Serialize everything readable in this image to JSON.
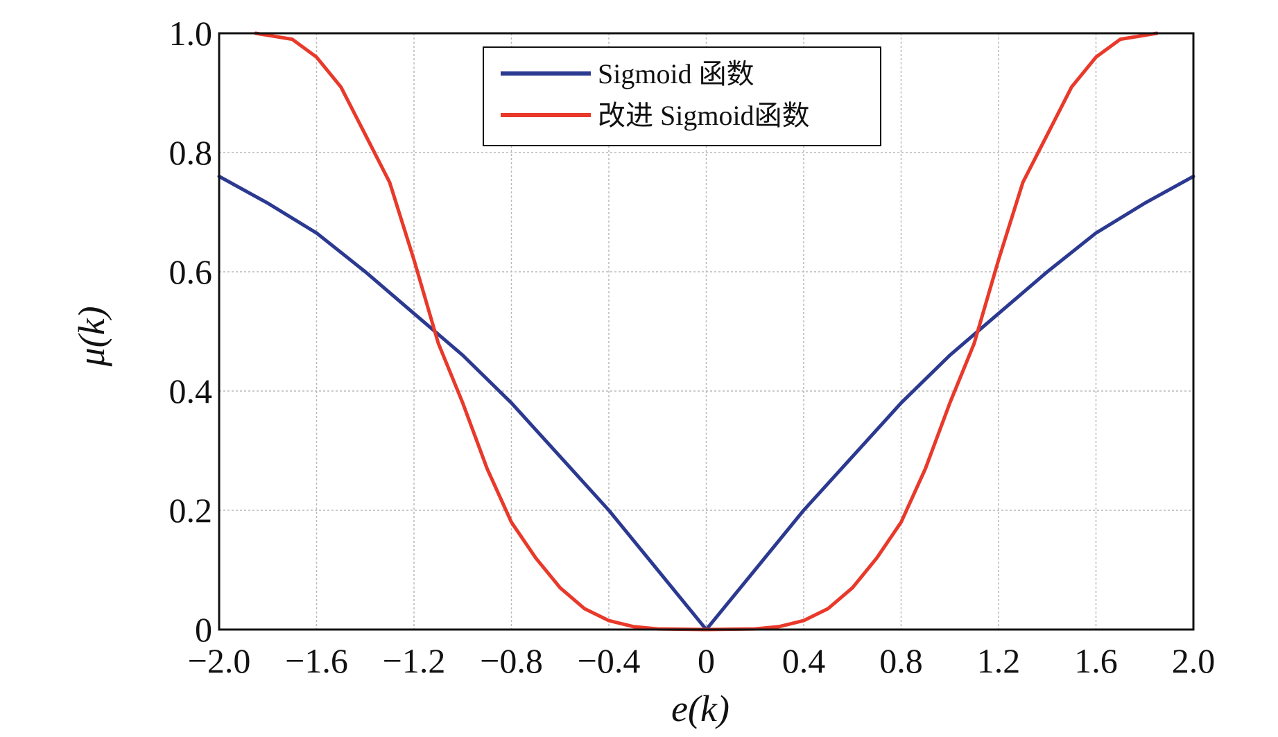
{
  "chart_data": {
    "type": "line",
    "xlabel": "e(k)",
    "ylabel": "μ(k)",
    "xlim": [
      -2.0,
      2.0
    ],
    "ylim": [
      0,
      1.0
    ],
    "x_ticks": [
      -2.0,
      -1.6,
      -1.2,
      -0.8,
      -0.4,
      0,
      0.4,
      0.8,
      1.2,
      1.6,
      2.0
    ],
    "x_tick_labels": [
      "−2.0",
      "−1.6",
      "−1.2",
      "−0.8",
      "−0.4",
      "0",
      "0.4",
      "0.8",
      "1.2",
      "1.6",
      "2.0"
    ],
    "y_ticks": [
      0,
      0.2,
      0.4,
      0.6,
      0.8,
      1.0
    ],
    "y_tick_labels": [
      "0",
      "0.2",
      "0.4",
      "0.6",
      "0.8",
      "1.0"
    ],
    "grid": true,
    "legend": "top-center",
    "series": [
      {
        "name": "Sigmoid 函数",
        "color": "#2b3990",
        "x": [
          -2.0,
          -1.8,
          -1.6,
          -1.4,
          -1.2,
          -1.0,
          -0.8,
          -0.6,
          -0.4,
          -0.2,
          0,
          0.2,
          0.4,
          0.6,
          0.8,
          1.0,
          1.2,
          1.4,
          1.6,
          1.8,
          2.0
        ],
        "y": [
          0.76,
          0.715,
          0.665,
          0.6,
          0.53,
          0.46,
          0.38,
          0.29,
          0.2,
          0.1,
          0.0,
          0.1,
          0.2,
          0.29,
          0.38,
          0.46,
          0.53,
          0.6,
          0.665,
          0.715,
          0.76
        ]
      },
      {
        "name": "改进 Sigmoid函数",
        "color": "#e8392a",
        "x": [
          -1.85,
          -1.7,
          -1.6,
          -1.5,
          -1.4,
          -1.3,
          -1.2,
          -1.1,
          -1.0,
          -0.9,
          -0.8,
          -0.7,
          -0.6,
          -0.5,
          -0.4,
          -0.3,
          -0.2,
          0,
          0.2,
          0.3,
          0.4,
          0.5,
          0.6,
          0.7,
          0.8,
          0.9,
          1.0,
          1.1,
          1.2,
          1.3,
          1.4,
          1.5,
          1.6,
          1.7,
          1.85
        ],
        "y": [
          1.0,
          0.99,
          0.96,
          0.91,
          0.83,
          0.75,
          0.62,
          0.48,
          0.38,
          0.27,
          0.18,
          0.12,
          0.07,
          0.035,
          0.015,
          0.005,
          0.001,
          0.0,
          0.001,
          0.005,
          0.015,
          0.035,
          0.07,
          0.12,
          0.18,
          0.27,
          0.38,
          0.48,
          0.62,
          0.75,
          0.83,
          0.91,
          0.96,
          0.99,
          1.0
        ]
      }
    ]
  }
}
